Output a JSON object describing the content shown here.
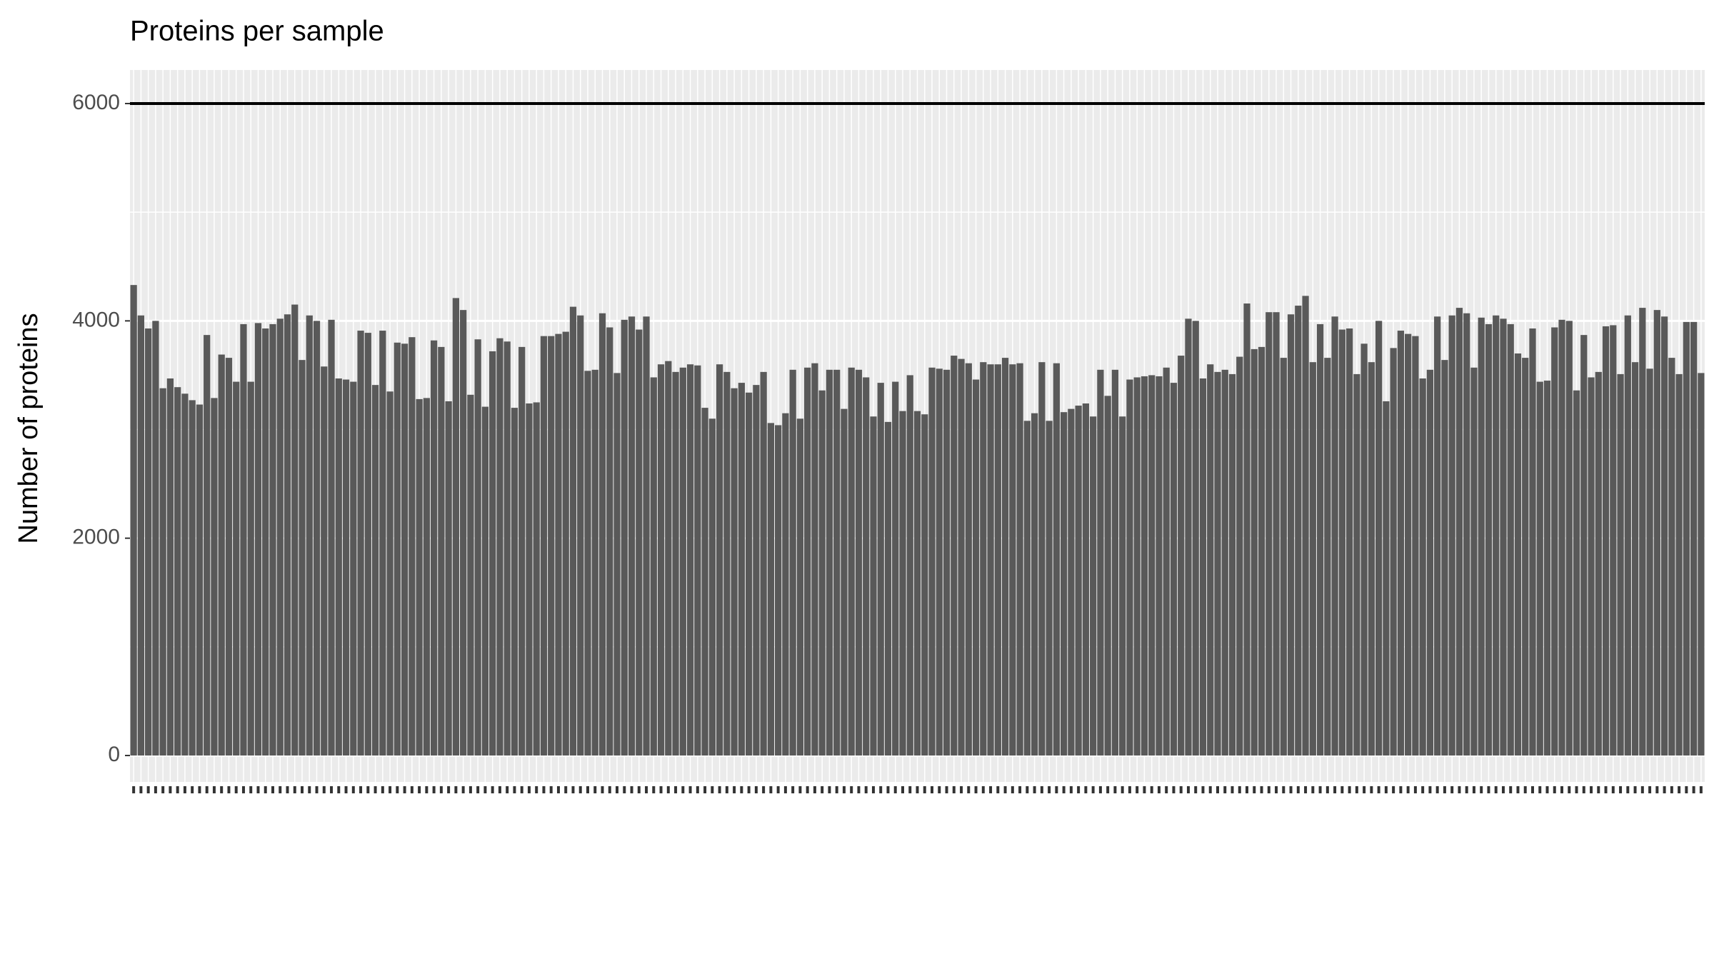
{
  "chart_data": {
    "type": "bar",
    "title": "Proteins per sample",
    "ylabel": "Number of proteins",
    "categories": [
      null,
      null,
      null,
      null,
      null,
      null,
      null,
      null,
      null,
      null,
      null,
      null,
      null,
      null,
      null,
      null,
      null,
      null,
      null,
      null,
      null,
      null,
      null,
      null,
      null,
      null,
      null,
      null,
      null,
      null,
      null,
      null,
      null,
      null,
      null,
      null,
      null,
      null,
      null,
      null,
      null,
      null,
      null,
      null,
      null,
      null,
      null,
      null,
      null,
      null,
      null,
      null,
      null,
      null,
      null,
      null,
      null,
      null,
      null,
      null,
      null,
      null,
      null,
      null,
      null,
      null,
      null,
      null,
      null,
      null,
      null,
      null,
      null,
      null,
      null,
      null,
      null,
      null,
      null,
      null,
      null,
      null,
      null,
      null,
      null,
      null,
      null,
      null,
      null,
      null,
      null,
      null,
      null,
      null,
      null,
      null,
      null,
      null,
      null,
      null,
      null,
      null,
      null,
      null,
      null,
      null,
      null,
      null,
      null,
      null,
      null,
      null,
      null,
      null,
      null,
      null,
      null,
      null,
      null,
      null,
      null,
      null,
      null,
      null,
      null,
      null,
      null,
      null,
      null,
      null,
      null,
      null,
      null,
      null,
      null,
      null,
      null,
      null,
      null,
      null,
      null,
      null,
      null,
      null,
      null,
      null,
      null,
      null,
      null,
      null,
      null,
      null,
      null,
      null,
      null,
      null,
      null,
      null,
      null,
      null,
      null,
      null,
      null,
      null,
      null,
      null,
      null,
      null,
      null,
      null,
      null,
      null,
      null,
      null,
      null,
      null,
      null,
      null,
      null,
      null,
      null,
      null,
      null,
      null,
      null,
      null,
      null,
      null,
      null,
      null,
      null,
      null,
      null,
      null,
      null,
      null,
      null,
      null,
      null,
      null,
      null,
      null,
      null,
      null,
      null,
      null,
      null,
      null,
      null,
      null,
      null,
      null,
      null,
      null,
      null
    ],
    "values": [
      4330,
      4050,
      3930,
      4000,
      3380,
      3470,
      3390,
      3330,
      3270,
      3230,
      3870,
      3290,
      3690,
      3660,
      3440,
      3970,
      3440,
      3980,
      3930,
      3970,
      4020,
      4060,
      4150,
      3640,
      4050,
      4000,
      3580,
      4010,
      3470,
      3460,
      3440,
      3910,
      3890,
      3410,
      3910,
      3350,
      3800,
      3790,
      3850,
      3280,
      3290,
      3820,
      3760,
      3260,
      4210,
      4100,
      3320,
      3830,
      3210,
      3720,
      3840,
      3810,
      3200,
      3760,
      3240,
      3250,
      3860,
      3860,
      3880,
      3900,
      4130,
      4050,
      3540,
      3550,
      4070,
      3940,
      3520,
      4010,
      4040,
      3920,
      4040,
      3480,
      3600,
      3630,
      3530,
      3570,
      3600,
      3590,
      3200,
      3100,
      3600,
      3530,
      3380,
      3430,
      3340,
      3410,
      3530,
      3060,
      3040,
      3150,
      3550,
      3100,
      3570,
      3610,
      3360,
      3550,
      3550,
      3190,
      3570,
      3550,
      3480,
      3120,
      3430,
      3070,
      3440,
      3170,
      3500,
      3170,
      3140,
      3570,
      3560,
      3550,
      3680,
      3650,
      3610,
      3460,
      3620,
      3600,
      3600,
      3660,
      3600,
      3610,
      3080,
      3150,
      3620,
      3080,
      3610,
      3160,
      3190,
      3220,
      3240,
      3120,
      3550,
      3310,
      3550,
      3120,
      3460,
      3480,
      3490,
      3500,
      3490,
      3570,
      3430,
      3680,
      4020,
      4000,
      3470,
      3600,
      3530,
      3550,
      3510,
      3670,
      4160,
      3740,
      3760,
      4080,
      4080,
      3660,
      4060,
      4140,
      4230,
      3620,
      3970,
      3660,
      4040,
      3920,
      3930,
      3510,
      3790,
      3620,
      4000,
      3260,
      3750,
      3910,
      3880,
      3860,
      3470,
      3550,
      4040,
      3640,
      4050,
      4120,
      4070,
      3570,
      4030,
      3970,
      4050,
      4020,
      3970,
      3700,
      3660,
      3930,
      3440,
      3450,
      3940,
      4010,
      4000,
      3360,
      3870,
      3480,
      3530,
      3950,
      3960,
      3510,
      4050,
      3620,
      4120,
      3560,
      4100,
      4040,
      3660,
      3510,
      3990,
      3990,
      3520
    ],
    "color": "#595959",
    "ylim": [
      -243,
      6309
    ],
    "yticks": [
      0,
      2000,
      4000,
      6000
    ],
    "grid": true,
    "hline": 6000
  }
}
